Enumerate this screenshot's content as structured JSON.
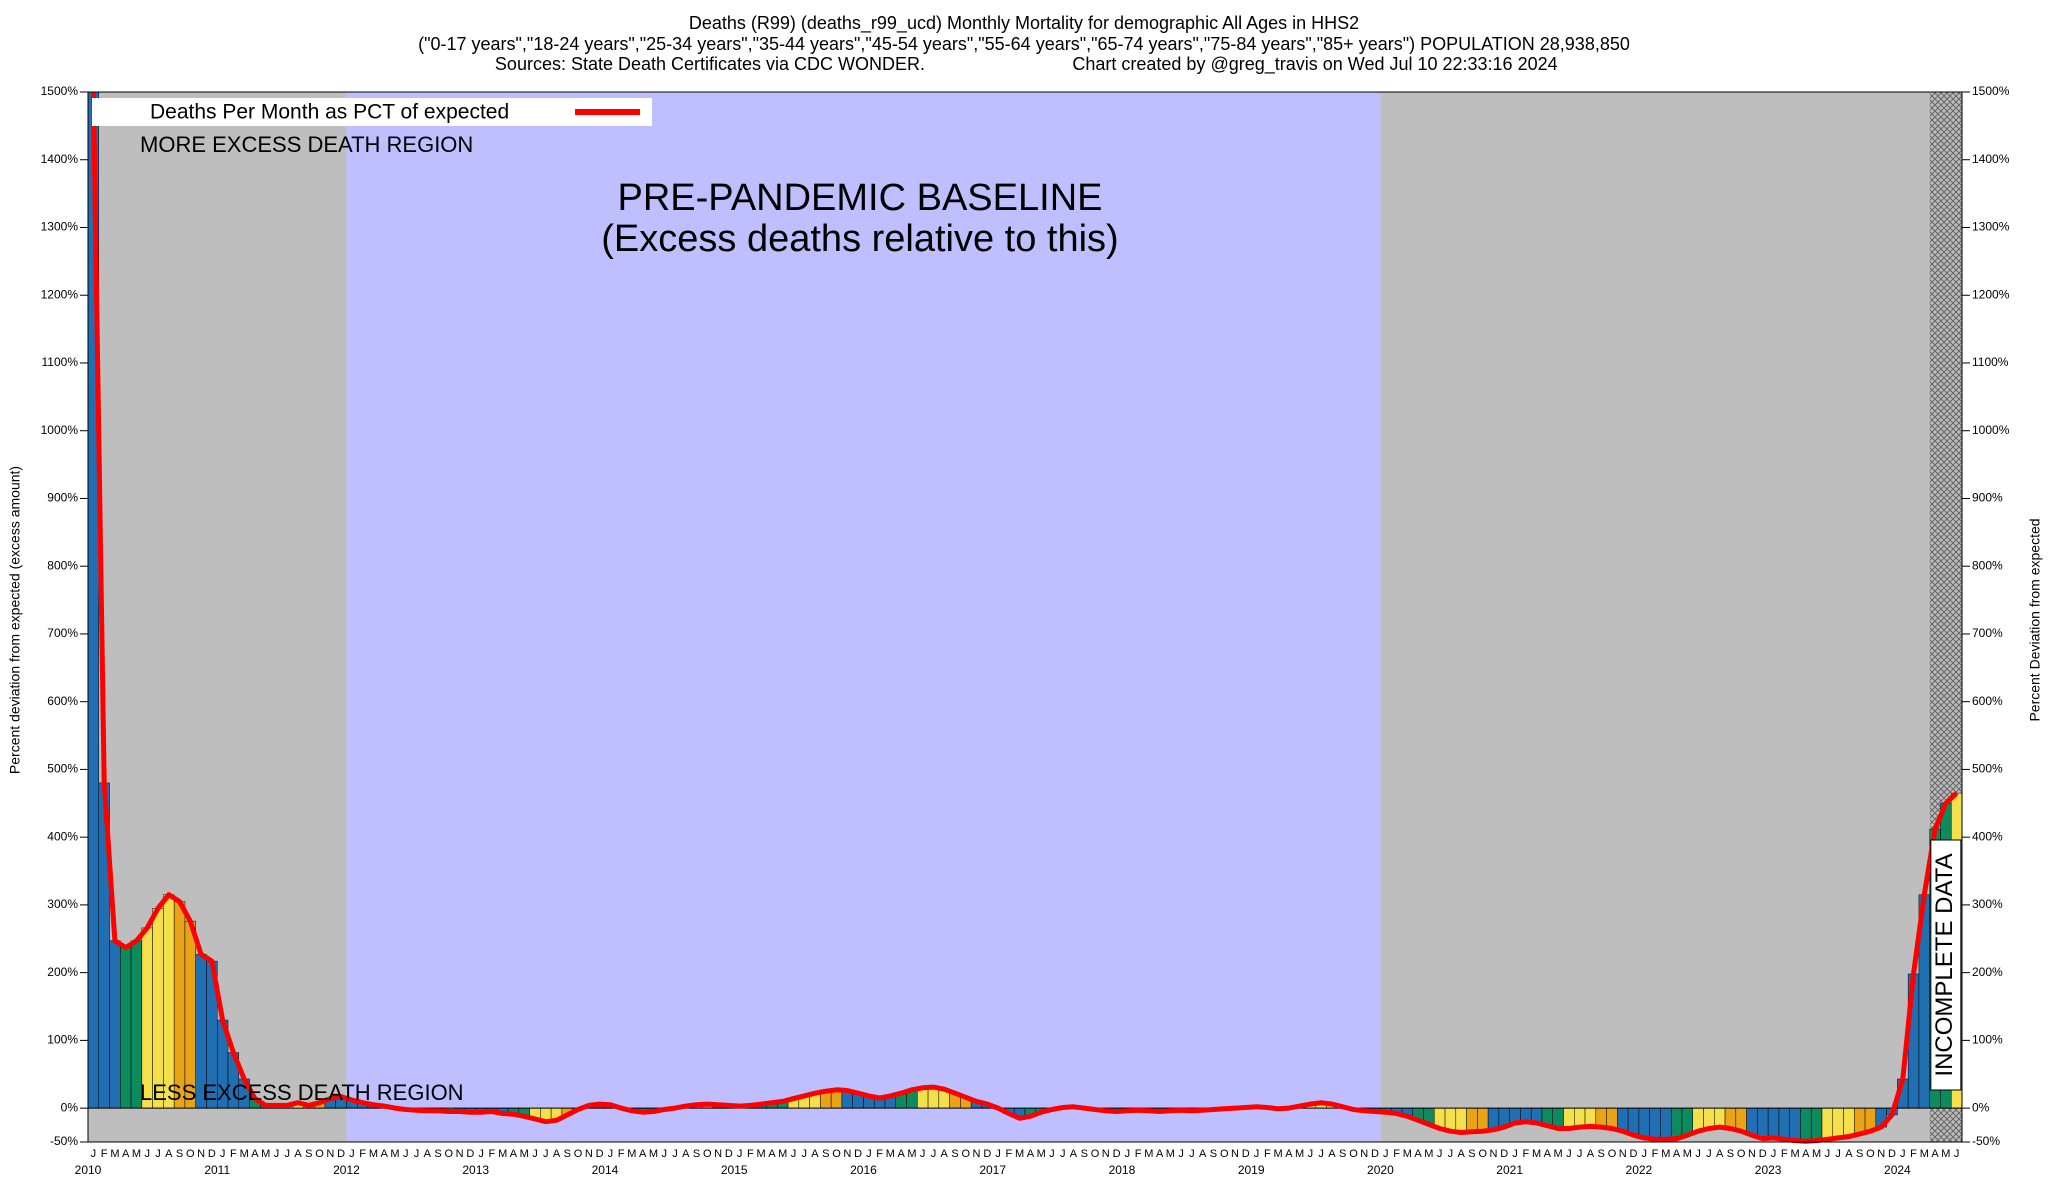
{
  "chart_data": {
    "type": "bar",
    "title_lines": [
      "Deaths (R99) (deaths_r99_ucd) Monthly Mortality for demographic All Ages in HHS2",
      "(\"0-17 years\",\"18-24 years\",\"25-34 years\",\"35-44 years\",\"45-54 years\",\"55-64 years\",\"65-74 years\",\"75-84 years\",\"85+ years\") POPULATION 28,938,850"
    ],
    "sources": "Sources: State Death Certificates via CDC WONDER.",
    "credit": "Chart created by @greg_travis on Wed Jul 10 22:33:16 2024",
    "y_label": "Percent deviation from expected (excess amount)",
    "y2_label": "Percent Deviation from expected",
    "annotations": {
      "more": "MORE EXCESS DEATH REGION",
      "less": "LESS EXCESS DEATH REGION",
      "baseline_1": "PRE-PANDEMIC BASELINE",
      "baseline_2": "(Excess deaths relative to this)",
      "incomplete": "INCOMPLETE DATA"
    },
    "legend_name": "Deaths Per Month as PCT of expected",
    "line_color": "#ff0000",
    "month_colors": [
      "#1f6fb2",
      "#1f6fb2",
      "#1f6fb2",
      "#0e8a5f",
      "#0e8a5f",
      "#f3e04a",
      "#f3e04a",
      "#f3e04a",
      "#e8a317",
      "#e8a317",
      "#1f6fb2",
      "#1f6fb2"
    ],
    "month_letters": [
      "J",
      "F",
      "M",
      "A",
      "M",
      "J",
      "J",
      "A",
      "S",
      "O",
      "N",
      "D"
    ],
    "years": [
      "2010",
      "2011",
      "2012",
      "2013",
      "2014",
      "2015",
      "2016",
      "2017",
      "2018",
      "2019",
      "2020",
      "2021",
      "2022",
      "2023",
      "2024"
    ],
    "values": [
      1500,
      480,
      247,
      237,
      247,
      266,
      295,
      315,
      305,
      276,
      227,
      217,
      130,
      82,
      43,
      14,
      4,
      4,
      4,
      8,
      4,
      8,
      14,
      17,
      12,
      8,
      5,
      3,
      0,
      -2,
      -3,
      -4,
      -4,
      -5,
      -5,
      -6,
      -6,
      -5,
      -8,
      -9,
      -12,
      -16,
      -20,
      -18,
      -10,
      -2,
      4,
      6,
      5,
      0,
      -4,
      -6,
      -5,
      -2,
      0,
      3,
      5,
      6,
      5,
      4,
      3,
      4,
      6,
      8,
      10,
      14,
      18,
      22,
      25,
      27,
      26,
      22,
      18,
      15,
      18,
      22,
      27,
      30,
      31,
      28,
      22,
      16,
      10,
      6,
      0,
      -8,
      -15,
      -12,
      -6,
      -2,
      1,
      2,
      0,
      -2,
      -4,
      -5,
      -4,
      -3,
      -4,
      -5,
      -4,
      -3,
      -4,
      -3,
      -2,
      -1,
      0,
      1,
      2,
      1,
      -1,
      0,
      3,
      6,
      8,
      6,
      2,
      -2,
      -4,
      -5,
      -6,
      -8,
      -12,
      -18,
      -24,
      -30,
      -34,
      -36,
      -35,
      -34,
      -32,
      -28,
      -22,
      -20,
      -22,
      -26,
      -30,
      -30,
      -28,
      -27,
      -28,
      -30,
      -34,
      -40,
      -44,
      -46,
      -46,
      -45,
      -40,
      -34,
      -30,
      -28,
      -30,
      -34,
      -40,
      -45,
      -44,
      -46,
      -48,
      -49,
      -48,
      -46,
      -44,
      -42,
      -38,
      -34,
      -28,
      -10,
      43,
      198,
      315,
      412,
      450,
      465
    ],
    "ylim": [
      -50,
      1500
    ],
    "yticks": [
      {
        "value": -50,
        "label": "-50%"
      },
      {
        "value": 0,
        "label": "0%"
      },
      {
        "value": 100,
        "label": "100%"
      },
      {
        "value": 200,
        "label": "200%"
      },
      {
        "value": 300,
        "label": "300%"
      },
      {
        "value": 400,
        "label": "400%"
      },
      {
        "value": 500,
        "label": "500%"
      },
      {
        "value": 600,
        "label": "600%"
      },
      {
        "value": 700,
        "label": "700%"
      },
      {
        "value": 800,
        "label": "800%"
      },
      {
        "value": 900,
        "label": "900%"
      },
      {
        "value": 1000,
        "label": "1000%"
      },
      {
        "value": 1100,
        "label": "1100%"
      },
      {
        "value": 1200,
        "label": "1200%"
      },
      {
        "value": 1300,
        "label": "1300%"
      },
      {
        "value": 1400,
        "label": "1400%"
      },
      {
        "value": 1500,
        "label": "1500%"
      }
    ]
  }
}
